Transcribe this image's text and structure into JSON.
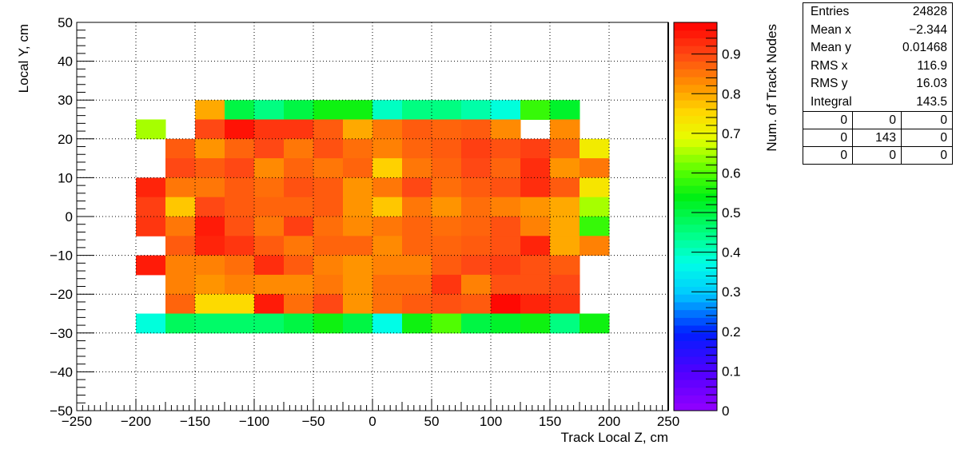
{
  "chart_data": {
    "type": "heatmap",
    "title": "",
    "xlabel": "Track Local Z, cm",
    "ylabel": "Local Y, cm",
    "zlabel": "Num. of Track Nodes",
    "xlim": [
      -250,
      250
    ],
    "ylim": [
      -50,
      50
    ],
    "zlim": [
      0,
      0.98
    ],
    "x_ticks": [
      -250,
      -200,
      -150,
      -100,
      -50,
      0,
      50,
      100,
      150,
      200,
      250
    ],
    "y_ticks": [
      -50,
      -40,
      -30,
      -20,
      -10,
      0,
      10,
      20,
      30,
      40,
      50
    ],
    "z_ticks": [
      0,
      0.1,
      0.2,
      0.3,
      0.4,
      0.5,
      0.6,
      0.7,
      0.8,
      0.9
    ],
    "x_tick_labels": [
      "−250",
      "−200",
      "−150",
      "−100",
      "−50",
      "0",
      "50",
      "100",
      "150",
      "200",
      "250"
    ],
    "y_tick_labels": [
      "−50",
      "−40",
      "−30",
      "−20",
      "−10",
      "0",
      "10",
      "20",
      "30",
      "40",
      "50"
    ],
    "z_tick_labels": [
      "0",
      "0.1",
      "0.2",
      "0.3",
      "0.4",
      "0.5",
      "0.6",
      "0.7",
      "0.8",
      "0.9"
    ],
    "grid": true,
    "x_bin_edges": [
      -200,
      -175,
      -150,
      -125,
      -100,
      -75,
      -50,
      -25,
      0,
      25,
      50,
      75,
      100,
      125,
      150,
      175,
      200
    ],
    "y_bin_edges": [
      -30,
      -25,
      -20,
      -15,
      -10,
      -5,
      0,
      5,
      10,
      15,
      20,
      25,
      30
    ],
    "values_rows_top_to_bottom": [
      [
        null,
        null,
        0.8,
        0.5,
        0.45,
        0.5,
        0.55,
        0.55,
        0.4,
        0.45,
        0.45,
        0.42,
        0.38,
        0.58,
        0.52,
        null
      ],
      [
        0.65,
        null,
        0.9,
        0.96,
        0.92,
        0.92,
        0.88,
        0.8,
        0.85,
        0.88,
        0.87,
        0.88,
        0.83,
        null,
        0.83,
        null
      ],
      [
        null,
        0.88,
        0.82,
        0.87,
        0.9,
        0.85,
        0.89,
        0.86,
        0.84,
        0.87,
        0.88,
        0.91,
        0.89,
        0.91,
        0.87,
        0.72
      ],
      [
        null,
        0.9,
        0.88,
        0.9,
        0.83,
        0.87,
        0.85,
        0.87,
        0.76,
        0.85,
        0.87,
        0.9,
        0.87,
        0.93,
        0.82,
        0.85
      ],
      [
        0.94,
        0.85,
        0.85,
        0.88,
        0.86,
        0.89,
        0.88,
        0.82,
        0.85,
        0.9,
        0.86,
        0.88,
        0.89,
        0.93,
        0.88,
        0.73
      ],
      [
        0.91,
        0.77,
        0.9,
        0.88,
        0.87,
        0.87,
        0.88,
        0.82,
        0.77,
        0.85,
        0.82,
        0.86,
        0.84,
        0.82,
        0.8,
        0.65
      ],
      [
        0.92,
        0.85,
        0.95,
        0.89,
        0.85,
        0.91,
        0.86,
        0.83,
        0.85,
        0.87,
        0.86,
        0.87,
        0.89,
        0.84,
        0.8,
        0.58
      ],
      [
        null,
        0.88,
        0.94,
        0.92,
        0.88,
        0.85,
        0.87,
        0.87,
        0.83,
        0.87,
        0.87,
        0.88,
        0.89,
        0.94,
        0.8,
        0.84
      ],
      [
        0.95,
        0.84,
        0.84,
        0.86,
        0.93,
        0.88,
        0.84,
        0.82,
        0.84,
        0.84,
        0.88,
        0.9,
        0.91,
        0.89,
        0.88,
        null
      ],
      [
        null,
        0.84,
        0.82,
        0.84,
        0.83,
        0.83,
        0.85,
        0.82,
        0.86,
        0.86,
        0.92,
        0.84,
        0.89,
        0.89,
        0.9,
        null
      ],
      [
        null,
        0.87,
        0.75,
        0.75,
        0.95,
        0.86,
        0.9,
        0.82,
        0.86,
        0.88,
        0.89,
        0.88,
        0.97,
        0.94,
        0.92,
        null
      ],
      [
        0.38,
        0.48,
        0.47,
        0.47,
        0.47,
        0.5,
        0.55,
        0.5,
        0.37,
        0.55,
        0.6,
        0.5,
        0.52,
        0.55,
        0.45,
        0.55
      ]
    ]
  },
  "stats": {
    "rows": [
      {
        "label": "Entries",
        "value": "24828"
      },
      {
        "label": "Mean x",
        "value": "−2.344"
      },
      {
        "label": "Mean y",
        "value": "0.01468"
      },
      {
        "label": "RMS x",
        "value": "116.9"
      },
      {
        "label": "RMS y",
        "value": "16.03"
      },
      {
        "label": "Integral",
        "value": "143.5"
      }
    ],
    "grid": [
      [
        "0",
        "0",
        "0"
      ],
      [
        "0",
        "143",
        "0"
      ],
      [
        "0",
        "0",
        "0"
      ]
    ]
  }
}
